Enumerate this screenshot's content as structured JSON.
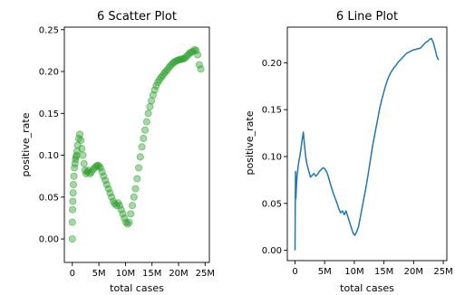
{
  "chart_data": [
    {
      "type": "scatter",
      "title": "6 Scatter Plot",
      "xlabel": "total cases",
      "ylabel": "positive_rate",
      "xlim": [
        -1.5,
        25.8
      ],
      "ylim": [
        -0.028,
        0.253
      ],
      "x_unit": "M",
      "x_ticks": [
        0,
        5,
        10,
        15,
        20,
        25
      ],
      "x_tick_labels": [
        "0",
        "5M",
        "10M",
        "15M",
        "20M",
        "25M"
      ],
      "y_ticks": [
        0.0,
        0.05,
        0.1,
        0.15,
        0.2,
        0.25
      ],
      "y_tick_labels": [
        "0.00",
        "0.05",
        "0.10",
        "0.15",
        "0.20",
        "0.25"
      ],
      "color": "#2ca02c",
      "grid": false,
      "x": [
        0.0,
        0.0,
        0.05,
        0.1,
        0.15,
        0.2,
        0.3,
        0.4,
        0.5,
        0.6,
        0.7,
        0.8,
        0.9,
        1.0,
        1.2,
        1.4,
        1.6,
        1.8,
        2.0,
        2.2,
        2.4,
        2.6,
        2.8,
        3.0,
        3.3,
        3.6,
        3.9,
        4.2,
        4.5,
        4.8,
        5.0,
        5.3,
        5.6,
        5.9,
        6.2,
        6.5,
        6.8,
        7.1,
        7.4,
        7.7,
        8.0,
        8.3,
        8.6,
        8.9,
        9.2,
        9.5,
        9.8,
        10.1,
        10.4,
        10.7,
        11.0,
        11.3,
        11.6,
        11.9,
        12.2,
        12.5,
        12.8,
        13.1,
        13.4,
        13.7,
        14.0,
        14.3,
        14.6,
        14.9,
        15.2,
        15.5,
        15.8,
        16.1,
        16.4,
        16.7,
        17.0,
        17.3,
        17.6,
        17.9,
        18.2,
        18.5,
        18.8,
        19.1,
        19.4,
        19.7,
        20.0,
        20.3,
        20.6,
        20.9,
        21.2,
        21.5,
        21.8,
        22.1,
        22.4,
        22.7,
        23.0,
        23.3,
        23.6,
        23.9,
        24.2
      ],
      "y": [
        0.0,
        0.02,
        0.035,
        0.045,
        0.055,
        0.065,
        0.075,
        0.085,
        0.09,
        0.095,
        0.098,
        0.1,
        0.105,
        0.112,
        0.12,
        0.125,
        0.118,
        0.108,
        0.1,
        0.09,
        0.082,
        0.078,
        0.08,
        0.082,
        0.078,
        0.08,
        0.083,
        0.085,
        0.087,
        0.088,
        0.087,
        0.085,
        0.08,
        0.075,
        0.07,
        0.065,
        0.06,
        0.055,
        0.05,
        0.045,
        0.042,
        0.04,
        0.043,
        0.04,
        0.035,
        0.03,
        0.025,
        0.02,
        0.018,
        0.02,
        0.03,
        0.04,
        0.05,
        0.06,
        0.072,
        0.085,
        0.098,
        0.11,
        0.12,
        0.13,
        0.14,
        0.15,
        0.158,
        0.165,
        0.172,
        0.178,
        0.183,
        0.187,
        0.19,
        0.193,
        0.195,
        0.198,
        0.2,
        0.202,
        0.205,
        0.207,
        0.209,
        0.211,
        0.212,
        0.213,
        0.214,
        0.214,
        0.215,
        0.215,
        0.216,
        0.218,
        0.22,
        0.222,
        0.223,
        0.224,
        0.226,
        0.225,
        0.22,
        0.208,
        0.203
      ]
    },
    {
      "type": "line",
      "title": "6 Line Plot",
      "xlabel": "total cases",
      "ylabel": "positive_rate",
      "xlim": [
        -1.3,
        25.6
      ],
      "ylim": [
        -0.011,
        0.238
      ],
      "x_unit": "M",
      "x_ticks": [
        0,
        5,
        10,
        15,
        20,
        25
      ],
      "x_tick_labels": [
        "0",
        "5M",
        "10M",
        "15M",
        "20M",
        "25M"
      ],
      "y_ticks": [
        0.0,
        0.05,
        0.1,
        0.15,
        0.2
      ],
      "y_tick_labels": [
        "0.00",
        "0.05",
        "0.10",
        "0.15",
        "0.20"
      ],
      "color": "#1f77b4",
      "grid": false,
      "x": [
        0.0,
        0.03,
        0.08,
        0.15,
        0.25,
        0.35,
        0.5,
        0.65,
        0.8,
        1.0,
        1.2,
        1.4,
        1.6,
        1.8,
        2.0,
        2.3,
        2.6,
        2.9,
        3.2,
        3.5,
        3.8,
        4.1,
        4.4,
        4.7,
        5.0,
        5.3,
        5.6,
        5.9,
        6.2,
        6.5,
        6.8,
        7.1,
        7.4,
        7.7,
        8.0,
        8.3,
        8.6,
        8.9,
        9.2,
        9.5,
        9.8,
        10.1,
        10.4,
        10.7,
        11.0,
        11.3,
        11.6,
        11.9,
        12.2,
        12.5,
        12.8,
        13.1,
        13.4,
        13.7,
        14.0,
        14.3,
        14.6,
        14.9,
        15.2,
        15.5,
        15.8,
        16.1,
        16.4,
        16.7,
        17.0,
        17.3,
        17.6,
        17.9,
        18.2,
        18.5,
        18.8,
        19.1,
        19.4,
        19.7,
        20.0,
        20.3,
        20.6,
        20.9,
        21.2,
        21.5,
        21.8,
        22.1,
        22.4,
        22.7,
        23.0,
        23.3,
        23.6,
        23.9,
        24.2
      ],
      "y": [
        0.0,
        0.035,
        0.084,
        0.055,
        0.07,
        0.08,
        0.088,
        0.095,
        0.1,
        0.108,
        0.118,
        0.126,
        0.112,
        0.1,
        0.092,
        0.085,
        0.078,
        0.08,
        0.082,
        0.079,
        0.081,
        0.084,
        0.086,
        0.088,
        0.087,
        0.084,
        0.079,
        0.072,
        0.066,
        0.06,
        0.055,
        0.05,
        0.044,
        0.04,
        0.042,
        0.038,
        0.042,
        0.036,
        0.03,
        0.024,
        0.018,
        0.016,
        0.02,
        0.025,
        0.035,
        0.045,
        0.055,
        0.065,
        0.076,
        0.088,
        0.1,
        0.112,
        0.122,
        0.132,
        0.142,
        0.152,
        0.16,
        0.167,
        0.174,
        0.18,
        0.185,
        0.189,
        0.192,
        0.195,
        0.197,
        0.2,
        0.202,
        0.204,
        0.206,
        0.208,
        0.21,
        0.211,
        0.212,
        0.213,
        0.214,
        0.214,
        0.215,
        0.215,
        0.216,
        0.218,
        0.22,
        0.222,
        0.223,
        0.225,
        0.226,
        0.222,
        0.215,
        0.207,
        0.203
      ]
    }
  ]
}
